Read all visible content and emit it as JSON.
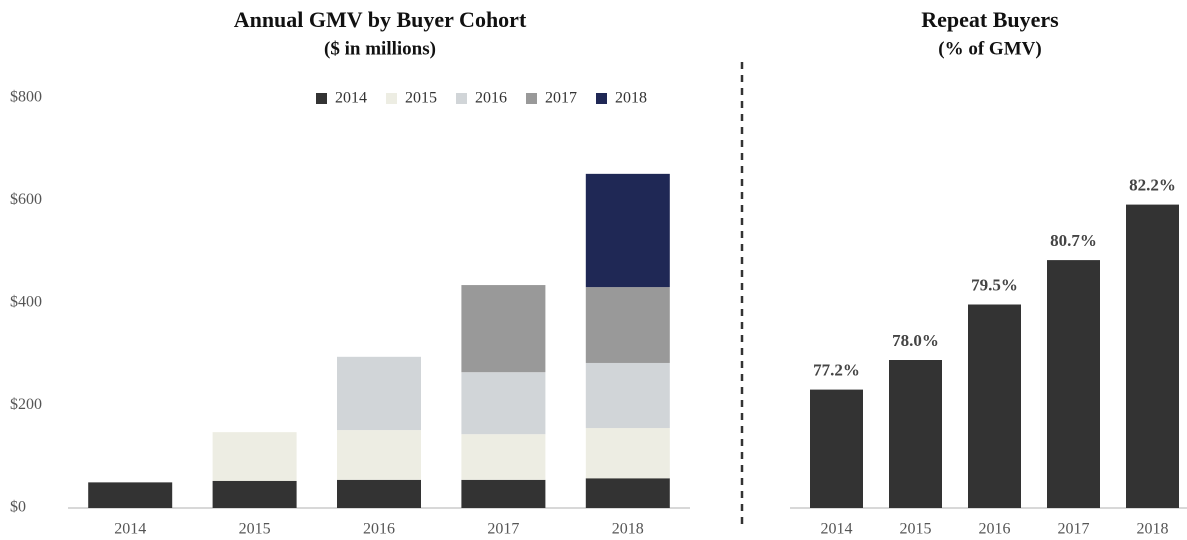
{
  "chart_data": [
    {
      "type": "bar",
      "stacked": true,
      "title": "Annual GMV by Buyer Cohort",
      "subtitle": "($ in millions)",
      "categories": [
        "2014",
        "2015",
        "2016",
        "2017",
        "2018"
      ],
      "series": [
        {
          "name": "2014",
          "color": "#333333",
          "values": [
            50,
            53,
            55,
            55,
            58
          ]
        },
        {
          "name": "2015",
          "color": "#edede3",
          "values": [
            null,
            95,
            97,
            89,
            98
          ]
        },
        {
          "name": "2016",
          "color": "#d1d5d8",
          "values": [
            null,
            null,
            143,
            121,
            127
          ]
        },
        {
          "name": "2017",
          "color": "#999999",
          "values": [
            null,
            null,
            null,
            170,
            148
          ]
        },
        {
          "name": "2018",
          "color": "#1f2855",
          "values": [
            null,
            null,
            null,
            null,
            221
          ]
        }
      ],
      "ylim": [
        0,
        800
      ],
      "yticks": [
        {
          "value": 0,
          "label": "$0"
        },
        {
          "value": 200,
          "label": "$200"
        },
        {
          "value": 400,
          "label": "$400"
        },
        {
          "value": 600,
          "label": "$600"
        },
        {
          "value": 800,
          "label": "$800"
        }
      ],
      "grid": false,
      "legend": "top"
    },
    {
      "type": "bar",
      "title": "Repeat Buyers",
      "subtitle": "(% of GMV)",
      "categories": [
        "2014",
        "2015",
        "2016",
        "2017",
        "2018"
      ],
      "values": [
        77.2,
        78.0,
        79.5,
        80.7,
        82.2
      ],
      "value_labels": [
        "77.2%",
        "78.0%",
        "79.5%",
        "80.7%",
        "82.2%"
      ],
      "color": "#333333",
      "ylim": [
        74,
        84
      ]
    }
  ]
}
